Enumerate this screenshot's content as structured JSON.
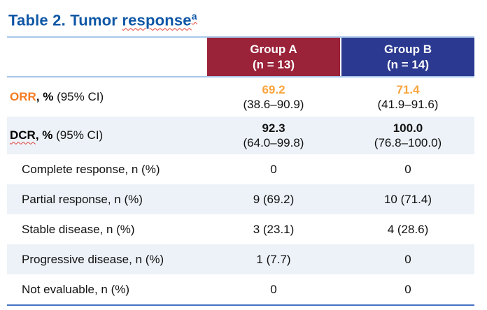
{
  "title": {
    "prefix": "Table 2. Tumor ",
    "misspelled": "response",
    "superscript": "a"
  },
  "colors": {
    "title_blue": "#0F57A6",
    "group_a_header": "#9A2239",
    "group_b_header": "#2B3990",
    "row_stripe": "#EDF2F8",
    "rule_light_blue": "#A9C7E9",
    "rule_bottom_blue": "#4472C4",
    "orr_label_orange": "#F47B21",
    "orr_value_orange": "#F9A43C",
    "spellcheck_red": "#E03C31"
  },
  "table": {
    "columns": [
      {
        "label": "Group A",
        "sub": "(n = 13)"
      },
      {
        "label": "Group B",
        "sub": "(n = 14)"
      }
    ],
    "rows": [
      {
        "label_term": "ORR",
        "label_bold": ", %",
        "label_rest": " (95% CI)",
        "a_main": "69.2",
        "a_ci": "(38.6–90.9)",
        "b_main": "71.4",
        "b_ci": "(41.9–91.6)"
      },
      {
        "label_term": "DCR",
        "label_bold": ", %",
        "label_rest": " (95% CI)",
        "a_main": "92.3",
        "a_ci": "(64.0–99.8)",
        "b_main": "100.0",
        "b_ci": "(76.8–100.0)"
      },
      {
        "label": "Complete response, n (%)",
        "a": "0",
        "b": "0"
      },
      {
        "label": "Partial response, n (%)",
        "a": "9 (69.2)",
        "b": "10 (71.4)"
      },
      {
        "label": "Stable disease, n (%)",
        "a": "3 (23.1)",
        "b": "4 (28.6)"
      },
      {
        "label": "Progressive disease, n (%)",
        "a": "1 (7.7)",
        "b": "0"
      },
      {
        "label": "Not evaluable, n (%)",
        "a": "0",
        "b": "0"
      }
    ]
  }
}
